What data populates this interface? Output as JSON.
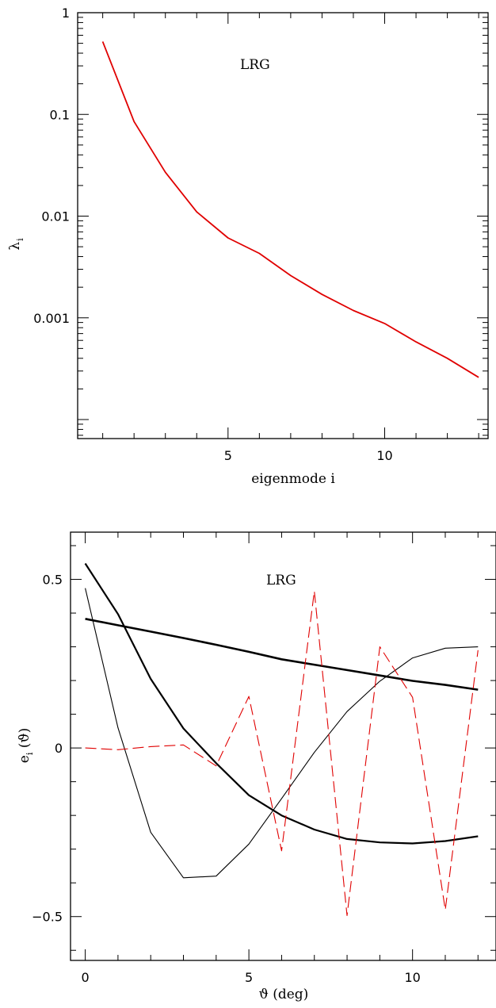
{
  "chart_data": [
    {
      "type": "line",
      "annotation": "LRG",
      "xlabel": "eigenmode i",
      "ylabel": "λ",
      "ylabel_sub": "i",
      "yscale": "log",
      "xlim": [
        0.2,
        13.3
      ],
      "ylim": [
        6.5e-05,
        1
      ],
      "xticks": [
        5,
        10
      ],
      "yticks": [
        1,
        0.1,
        0.01,
        0.001
      ],
      "ytick_labels": [
        "1",
        "0.1",
        "0.01",
        "0.001"
      ],
      "series": [
        {
          "color": "#e00000",
          "x": [
            1,
            2,
            3,
            4,
            5,
            6,
            7,
            8,
            9,
            10,
            11,
            12,
            13
          ],
          "values": [
            0.52,
            0.085,
            0.027,
            0.011,
            0.0061,
            0.0043,
            0.0026,
            0.0017,
            0.00118,
            0.00088,
            0.00058,
            0.0004,
            0.00026
          ]
        }
      ]
    },
    {
      "type": "line",
      "annotation": "LRG",
      "xlabel": "ϑ (deg)",
      "ylabel": "e",
      "ylabel_sub": "i",
      "ylabel_tail": " (ϑ)",
      "xlim": [
        -0.45,
        12.55
      ],
      "ylim": [
        -0.63,
        0.64
      ],
      "xticks": [
        0,
        5,
        10
      ],
      "yticks": [
        0.5,
        0,
        -0.5
      ],
      "ytick_labels": [
        "0.5",
        "0",
        "−0.5"
      ],
      "series": [
        {
          "color": "#000000",
          "width": 2.6,
          "dash": "",
          "x": [
            0,
            1,
            2,
            3,
            4,
            5,
            6,
            7,
            8,
            9,
            10,
            11,
            12
          ],
          "values": [
            0.383,
            0.364,
            0.345,
            0.326,
            0.306,
            0.285,
            0.263,
            0.247,
            0.231,
            0.215,
            0.199,
            0.187,
            0.173
          ]
        },
        {
          "color": "#000000",
          "width": 2.2,
          "dash": "",
          "x": [
            0,
            1,
            2,
            3,
            4,
            5,
            6,
            7,
            8,
            9,
            10,
            11,
            12
          ],
          "values": [
            0.547,
            0.397,
            0.205,
            0.058,
            -0.045,
            -0.14,
            -0.2,
            -0.242,
            -0.27,
            -0.28,
            -0.283,
            -0.276,
            -0.262
          ]
        },
        {
          "color": "#000000",
          "width": 1.1,
          "dash": "",
          "x": [
            0,
            1,
            2,
            3,
            4,
            5,
            6,
            7,
            8,
            9,
            10,
            11,
            12
          ],
          "values": [
            0.474,
            0.06,
            -0.25,
            -0.385,
            -0.38,
            -0.285,
            -0.15,
            -0.013,
            0.108,
            0.198,
            0.267,
            0.296,
            0.3
          ]
        },
        {
          "color": "#e00000",
          "width": 1.1,
          "dash": "14,6",
          "x": [
            0,
            1,
            2,
            3,
            4,
            5,
            6,
            7,
            8,
            9,
            10,
            11,
            12
          ],
          "values": [
            0.0,
            -0.005,
            0.004,
            0.009,
            -0.053,
            0.153,
            -0.305,
            0.465,
            -0.497,
            0.3,
            0.15,
            -0.48,
            0.29
          ]
        }
      ]
    }
  ]
}
